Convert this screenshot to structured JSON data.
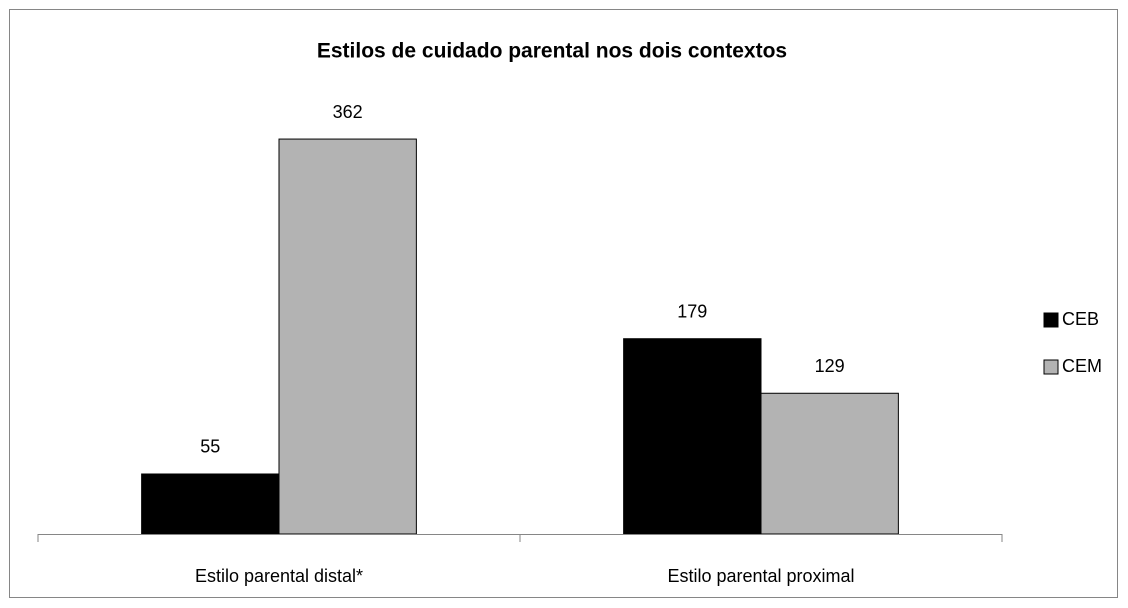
{
  "chart_data": {
    "type": "bar",
    "title": "Estilos de cuidado parental nos dois contextos",
    "categories": [
      "Estilo parental distal*",
      "Estilo parental proximal"
    ],
    "series": [
      {
        "name": "CEB",
        "color": "#000000",
        "values": [
          55,
          179
        ]
      },
      {
        "name": "CEM",
        "color": "#b3b3b3",
        "values": [
          362,
          129
        ]
      }
    ],
    "ylim": [
      0,
      400
    ],
    "legend": "right"
  }
}
